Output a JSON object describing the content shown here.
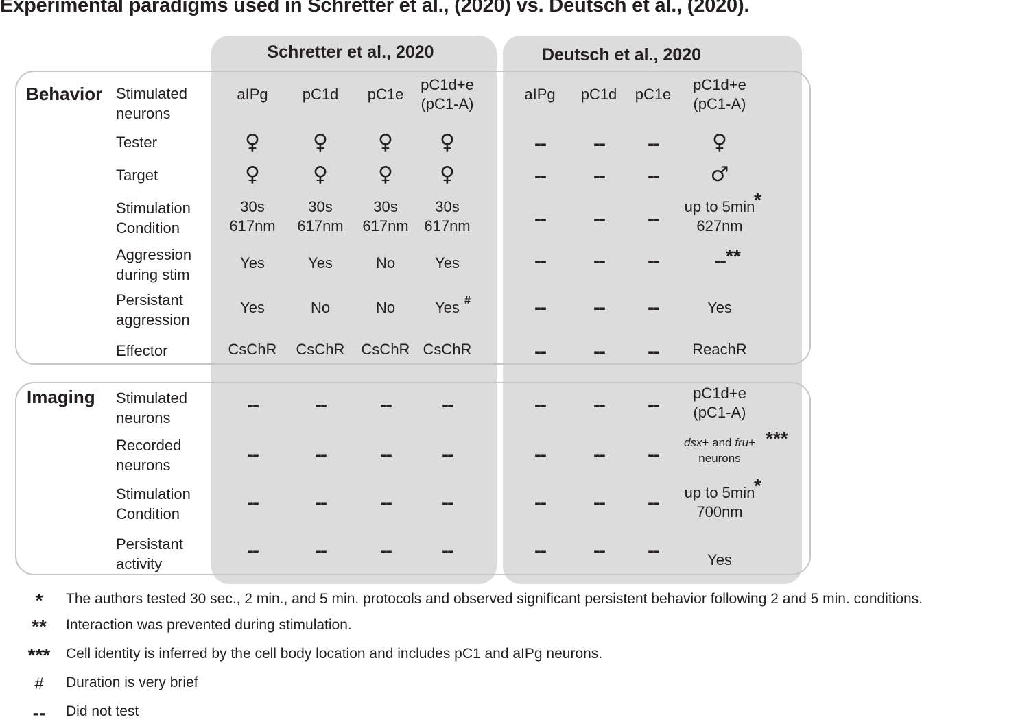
{
  "title": "Experimental paradigms used in Schretter et al., (2020) vs. Deutsch et al., (2020).",
  "studies": {
    "schretter": "Schretter et al., 2020",
    "deutsch": "Deutsch et al., 2020"
  },
  "sections": {
    "behavior": "Behavior",
    "imaging": "Imaging"
  },
  "row_labels": {
    "b_stim": [
      "Stimulated",
      "neurons"
    ],
    "b_tester": [
      "Tester"
    ],
    "b_target": [
      "Target"
    ],
    "b_cond": [
      "Stimulation",
      "Condition"
    ],
    "b_aggr": [
      "Aggression",
      "during stim"
    ],
    "b_persist": [
      "Persistant",
      "aggression"
    ],
    "b_effector": [
      "Effector"
    ],
    "i_stim": [
      "Stimulated",
      "neurons"
    ],
    "i_rec": [
      "Recorded",
      "neurons"
    ],
    "i_cond": [
      "Stimulation",
      "Condition"
    ],
    "i_persist": [
      "Persistant",
      "activity"
    ]
  },
  "columns": {
    "schretter": [
      "aIPg",
      "pC1d",
      "pC1e",
      "pC1d+e\n(pC1-A)"
    ],
    "deutsch": [
      "aIPg",
      "pC1d",
      "pC1e",
      "pC1d+e\n(pC1-A)"
    ]
  },
  "symbols": {
    "female": "♀",
    "male": "♂",
    "not_tested": "--"
  },
  "behavior": {
    "tester": [
      "♀",
      "♀",
      "♀",
      "♀",
      "--",
      "--",
      "--",
      "♀"
    ],
    "target": [
      "♀",
      "♀",
      "♀",
      "♀",
      "--",
      "--",
      "--",
      "♂"
    ],
    "condition": [
      "30s\n617nm",
      "30s\n617nm",
      "30s\n617nm",
      "30s\n617nm",
      "--",
      "--",
      "--",
      "up to 5min\n627nm"
    ],
    "aggression_during": [
      "Yes",
      "Yes",
      "No",
      "Yes",
      "--",
      "--",
      "--",
      "--"
    ],
    "persistent": [
      "Yes",
      "No",
      "No",
      "Yes",
      "--",
      "--",
      "--",
      "Yes"
    ],
    "effector": [
      "CsChR",
      "CsChR",
      "CsChR",
      "CsChR",
      "--",
      "--",
      "--",
      "ReachR"
    ]
  },
  "imaging": {
    "stimulated": [
      "--",
      "--",
      "--",
      "--",
      "--",
      "--",
      "--",
      "pC1d+e\n(pC1-A)"
    ],
    "recorded": [
      "--",
      "--",
      "--",
      "--",
      "--",
      "--",
      "--",
      "dsx+ and fru+\nneurons"
    ],
    "condition": [
      "--",
      "--",
      "--",
      "--",
      "--",
      "--",
      "--",
      "up to 5min\n700nm"
    ],
    "persistent": [
      "--",
      "--",
      "--",
      "--",
      "--",
      "--",
      "--",
      "Yes"
    ]
  },
  "markers": {
    "b_cond": "*",
    "b_aggr": "**",
    "b_persist": "#",
    "i_rec": "***",
    "i_cond": "*"
  },
  "footnotes": [
    {
      "mark": "*",
      "text": "The authors tested 30 sec., 2 min., and 5 min. protocols and observed significant persistent behavior following 2 and 5 min. conditions."
    },
    {
      "mark": "**",
      "text": "Interaction was prevented during stimulation."
    },
    {
      "mark": "***",
      "text": "Cell identity is inferred by the cell body location and includes pC1 and aIPg neurons."
    },
    {
      "mark": "#",
      "text": "Duration is very brief"
    },
    {
      "mark": "--",
      "text": "Did not test"
    }
  ]
}
